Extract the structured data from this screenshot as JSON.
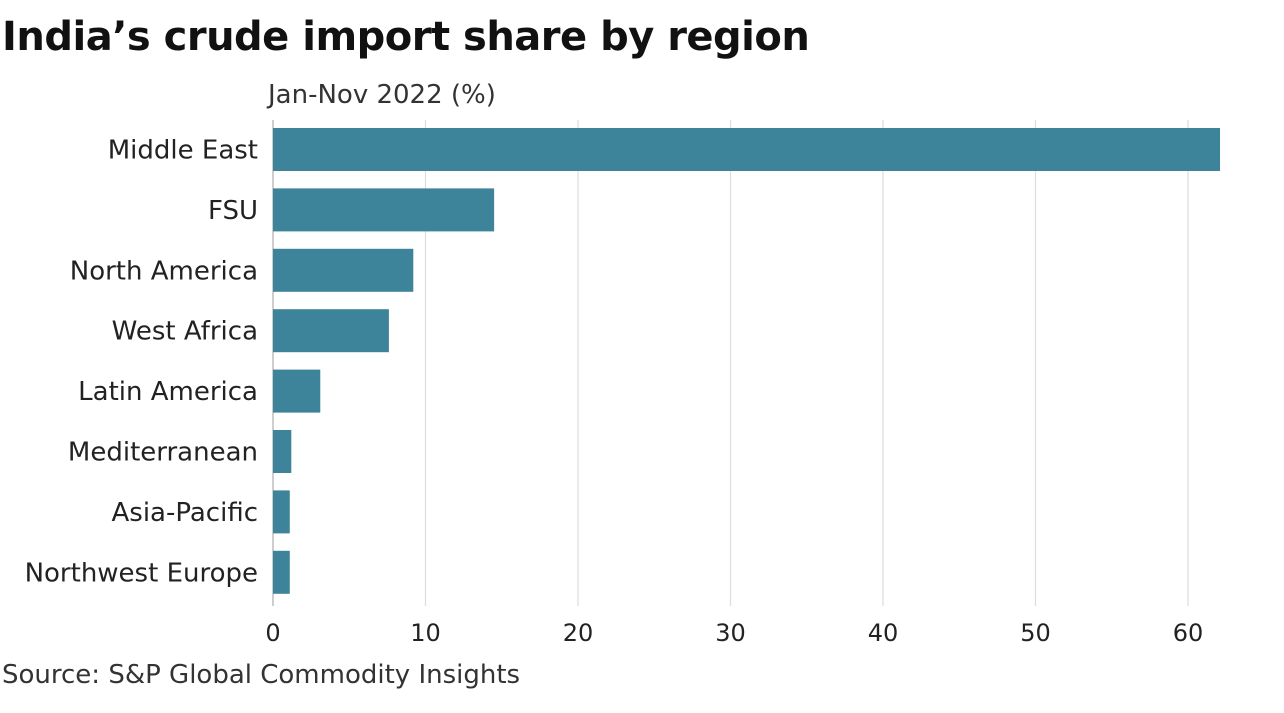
{
  "chart_data": {
    "type": "bar",
    "orientation": "horizontal",
    "title": "India’s crude import share by region",
    "subtitle": "Jan-Nov 2022 (%)",
    "categories": [
      "Middle East",
      "FSU",
      "North America",
      "West Africa",
      "Latin America",
      "Mediterranean",
      "Asia-Pacific",
      "Northwest Europe"
    ],
    "values": [
      62.1,
      14.5,
      9.2,
      7.6,
      3.1,
      1.2,
      1.1,
      1.1
    ],
    "xlim": [
      0,
      60
    ],
    "xticks": [
      0,
      10,
      20,
      30,
      40,
      50,
      60
    ],
    "grid": true,
    "bar_color": "#3d8399",
    "source": "Source: S&P Global Commodity Insights"
  }
}
